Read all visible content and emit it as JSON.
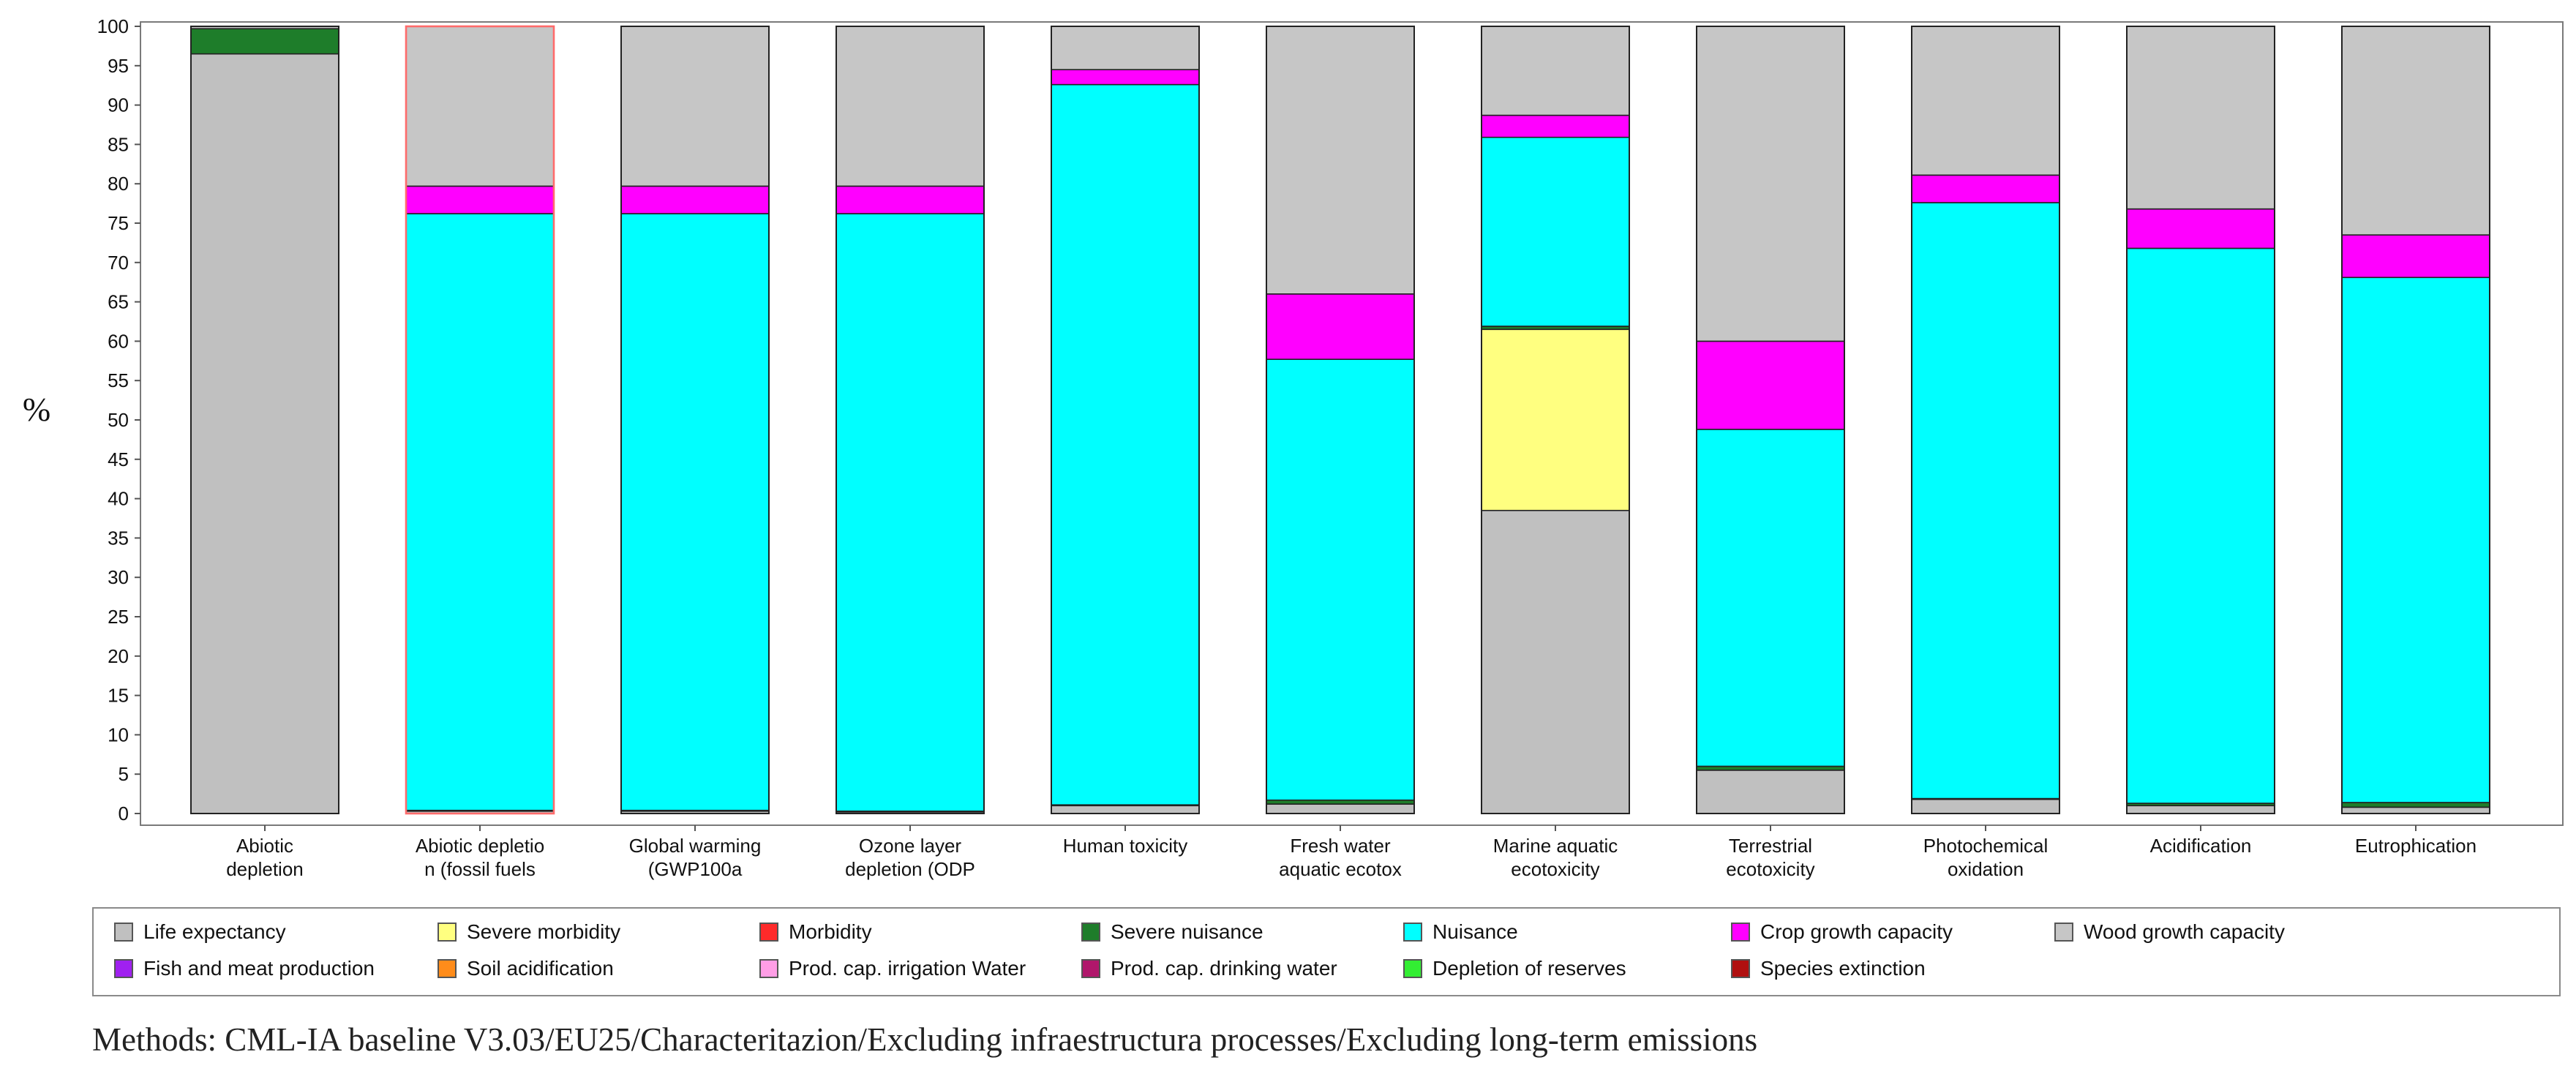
{
  "chart_data": {
    "type": "bar",
    "stacked": true,
    "title": "",
    "xlabel": "",
    "ylabel": "%",
    "ylim": [
      0,
      100
    ],
    "yticks": [
      0,
      5,
      10,
      15,
      20,
      25,
      30,
      35,
      40,
      45,
      50,
      55,
      60,
      65,
      70,
      75,
      80,
      85,
      90,
      95,
      100
    ],
    "categories": [
      [
        "Abiotic",
        "depletion"
      ],
      [
        "Abiotic depletio",
        "n (fossil fuels"
      ],
      [
        "Global warming",
        "(GWP100a"
      ],
      [
        "Ozone layer",
        "depletion (ODP"
      ],
      [
        "Human toxicity"
      ],
      [
        "Fresh water",
        "aquatic ecotox"
      ],
      [
        "Marine aquatic",
        "ecotoxicity"
      ],
      [
        "Terrestrial",
        "ecotoxicity"
      ],
      [
        "Photochemical",
        "oxidation"
      ],
      [
        "Acidification"
      ],
      [
        "Eutrophication"
      ]
    ],
    "series": [
      {
        "name": "Life expectancy",
        "color": "#c0c0c0",
        "values": [
          96.5,
          0.3,
          0.3,
          0.2,
          1.0,
          1.2,
          38.5,
          5.5,
          1.8,
          1.0,
          0.8
        ]
      },
      {
        "name": "Severe morbidity",
        "color": "#ffff80",
        "values": [
          0,
          0,
          0,
          0,
          0,
          0,
          23.0,
          0,
          0,
          0,
          0
        ]
      },
      {
        "name": "Morbidity",
        "color": "#ff2a2a",
        "values": [
          0,
          0,
          0,
          0,
          0,
          0,
          0,
          0,
          0,
          0,
          0
        ]
      },
      {
        "name": "Severe nuisance",
        "color": "#1e7d2a",
        "values": [
          3.2,
          0.1,
          0.1,
          0.1,
          0.1,
          0.5,
          0.4,
          0.5,
          0.1,
          0.3,
          0.6
        ]
      },
      {
        "name": "Nuisance",
        "color": "#00ffff",
        "values": [
          0,
          75.8,
          75.8,
          75.9,
          91.5,
          56.0,
          24.0,
          42.8,
          75.7,
          70.5,
          66.7
        ]
      },
      {
        "name": "Crop growth capacity",
        "color": "#ff00ff",
        "values": [
          0,
          3.5,
          3.5,
          3.5,
          1.9,
          8.3,
          2.8,
          11.2,
          3.5,
          5.0,
          5.4
        ]
      },
      {
        "name": "Wood growth capacity",
        "color": "#c6c6c6",
        "values": [
          0.3,
          20.3,
          20.3,
          20.3,
          5.5,
          34.0,
          11.3,
          40.0,
          18.9,
          23.2,
          26.5
        ]
      },
      {
        "name": "Fish and meat production",
        "color": "#a020f0",
        "values": [
          0,
          0,
          0,
          0,
          0,
          0,
          0,
          0,
          0,
          0,
          0
        ]
      },
      {
        "name": "Soil acidification",
        "color": "#ff8c1a",
        "values": [
          0,
          0,
          0,
          0,
          0,
          0,
          0,
          0,
          0,
          0,
          0
        ]
      },
      {
        "name": "Prod. cap. irrigation Water",
        "color": "#ff9ee6",
        "values": [
          0,
          0,
          0,
          0,
          0,
          0,
          0,
          0,
          0,
          0,
          0
        ]
      },
      {
        "name": "Prod. cap. drinking water",
        "color": "#b0176b",
        "values": [
          0,
          0,
          0,
          0,
          0,
          0,
          0,
          0,
          0,
          0,
          0
        ]
      },
      {
        "name": "Depletion of reserves",
        "color": "#33ee33",
        "values": [
          0,
          0,
          0,
          0,
          0,
          0,
          0,
          0,
          0,
          0,
          0
        ]
      },
      {
        "name": "Species extinction",
        "color": "#b01010",
        "values": [
          0,
          0,
          0,
          0,
          0,
          0,
          0,
          0,
          0,
          0,
          0
        ]
      }
    ],
    "highlighted_bar": "Abiotic depletio n (fossil fuels",
    "grid": false,
    "legend_position": "bottom"
  },
  "footer": {
    "methods_note": "Methods: CML-IA baseline V3.03/EU25/Characteritazion/Excluding infraestructura processes/Excluding long-term emissions"
  }
}
